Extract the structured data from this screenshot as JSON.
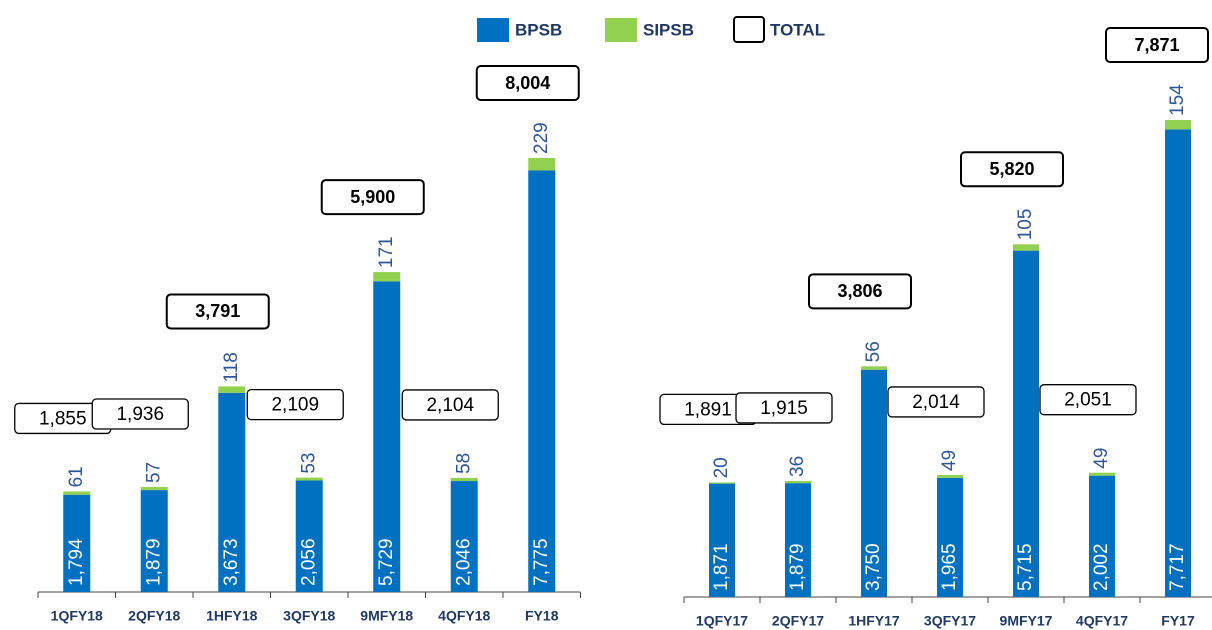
{
  "chart_data": [
    {
      "type": "bar",
      "stacked": true,
      "total_name": "TOTAL",
      "categories": [
        "1QFY18",
        "2QFY18",
        "1HFY18",
        "3QFY18",
        "9MFY18",
        "4QFY18",
        "FY18"
      ],
      "series": [
        {
          "name": "BPSB",
          "color": "#0070c0",
          "values": [
            1794,
            1879,
            3673,
            2056,
            5729,
            2046,
            7775
          ],
          "value_labels": [
            "1,794",
            "1,879",
            "3,673",
            "2,056",
            "5,729",
            "2,046",
            "7,775"
          ]
        },
        {
          "name": "SIPSB",
          "color": "#92d050",
          "values": [
            61,
            57,
            118,
            53,
            171,
            58,
            229
          ]
        }
      ],
      "totals": [
        1855,
        1936,
        3791,
        2109,
        5900,
        2104,
        8004
      ],
      "total_labels": [
        "1,855",
        "1,936",
        "3,791",
        "2,109",
        "5,900",
        "2,104",
        "8,004"
      ],
      "total_bold": [
        false,
        false,
        true,
        false,
        true,
        false,
        true
      ]
    },
    {
      "type": "bar",
      "stacked": true,
      "categories": [
        "1QFY17",
        "2QFY17",
        "1HFY17",
        "3QFY17",
        "9MFY17",
        "4QFY17",
        "FY17"
      ],
      "series": [
        {
          "name": "BPSB",
          "color": "#0070c0",
          "values": [
            1871,
            1879,
            3750,
            1965,
            5715,
            2002,
            7717
          ],
          "value_labels": [
            "1,871",
            "1,879",
            "3,750",
            "1,965",
            "5,715",
            "2,002",
            "7,717"
          ]
        },
        {
          "name": "SIPSB",
          "color": "#92d050",
          "values": [
            20,
            36,
            56,
            49,
            105,
            49,
            154
          ]
        }
      ],
      "totals": [
        1891,
        1915,
        3806,
        2014,
        5820,
        2051,
        7871
      ],
      "total_labels": [
        "1,891",
        "1,915",
        "3,806",
        "2,014",
        "5,820",
        "2,051",
        "7,871"
      ],
      "total_bold": [
        false,
        false,
        true,
        false,
        true,
        false,
        true
      ]
    }
  ]
}
